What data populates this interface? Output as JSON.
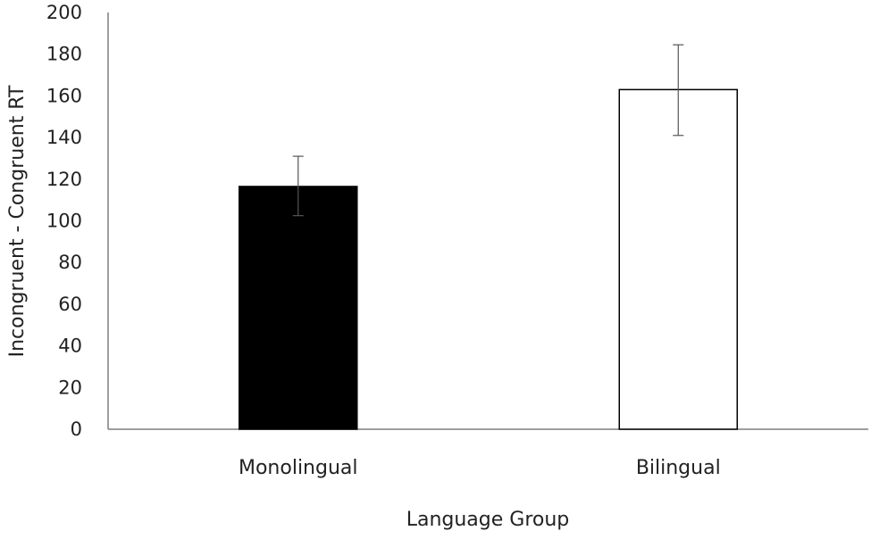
{
  "chart_data": {
    "type": "bar",
    "title": "",
    "xlabel": "Language Group",
    "ylabel": "Incongruent - Congruent RT",
    "ylim": [
      0,
      200
    ],
    "yticks": [
      0,
      20,
      40,
      60,
      80,
      100,
      120,
      140,
      160,
      180,
      200
    ],
    "categories": [
      "Monolingual",
      "Bilingual"
    ],
    "values": [
      116.5,
      163
    ],
    "error_low": [
      102.5,
      141
    ],
    "error_high": [
      131,
      184.5
    ],
    "bar_fills": [
      "#000000",
      "#ffffff"
    ],
    "bar_stroke": "#000000",
    "grid": false,
    "legend": false
  }
}
